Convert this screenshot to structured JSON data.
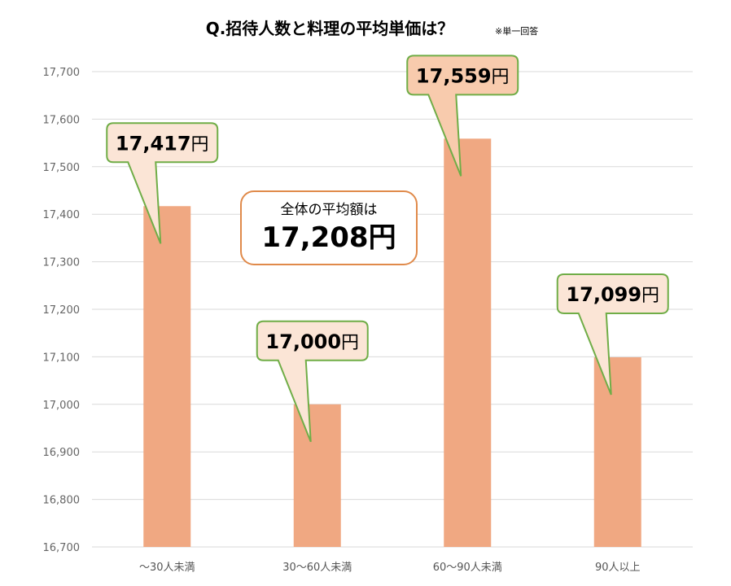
{
  "chart_data": {
    "type": "bar",
    "title": "Q.招待人数と料理の平均単価は？",
    "subtitle": "※単一回答",
    "categories": [
      "〜30人未満",
      "30〜60人未満",
      "60〜90人未満",
      "90人以上"
    ],
    "values": [
      17417,
      17000,
      17559,
      17099
    ],
    "data_labels": [
      "17,417",
      "17,000",
      "17,559",
      "17,099"
    ],
    "unit": "円",
    "ylim": [
      16700,
      17700
    ],
    "yticks": [
      "16,700",
      "16,800",
      "16,900",
      "17,000",
      "17,100",
      "17,200",
      "17,300",
      "17,400",
      "17,500",
      "17,600",
      "17,700"
    ],
    "grid": true,
    "legend": "none",
    "annotation": {
      "label": "全体の平均額は",
      "value": "17,208円"
    }
  },
  "colors": {
    "bar": "#f0a882",
    "callout_fill": "#fbe5d6",
    "callout_fill_highlight": "#f8cbad",
    "callout_border": "#70ad47",
    "annotation_border": "#e08a4a",
    "grid": "#d9d9d9"
  }
}
